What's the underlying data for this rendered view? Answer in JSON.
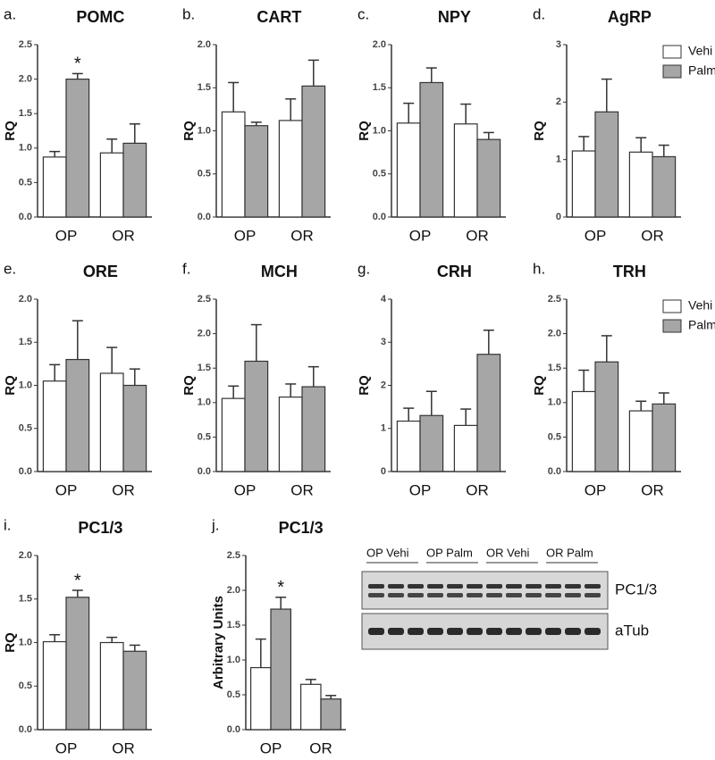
{
  "chart_data": [
    {
      "type": "bar",
      "panel_label": "a.",
      "title": "POMC",
      "ylabel": "RQ",
      "categories": [
        "OP",
        "OR"
      ],
      "series": [
        {
          "name": "Vehi",
          "color": "#ffffff",
          "values": [
            0.87,
            0.93
          ],
          "errors": [
            0.08,
            0.2
          ]
        },
        {
          "name": "Palm",
          "color": "#a6a6a6",
          "values": [
            2.0,
            1.07
          ],
          "errors": [
            0.08,
            0.28
          ]
        }
      ],
      "ylim": [
        0,
        2.5
      ],
      "yticks": [
        {
          "value": 0,
          "label": "0.0"
        },
        0.5,
        {
          "value": 1,
          "label": "1.0"
        },
        1.5,
        {
          "value": 2,
          "label": "2.0"
        },
        2.5
      ],
      "annotation": {
        "text": "*",
        "category": "OP",
        "series": "Palm"
      }
    },
    {
      "type": "bar",
      "panel_label": "b.",
      "title": "CART",
      "ylabel": "RQ",
      "categories": [
        "OP",
        "OR"
      ],
      "series": [
        {
          "name": "Vehi",
          "color": "#ffffff",
          "values": [
            1.22,
            1.12
          ],
          "errors": [
            0.34,
            0.25
          ]
        },
        {
          "name": "Palm",
          "color": "#a6a6a6",
          "values": [
            1.06,
            1.52
          ],
          "errors": [
            0.04,
            0.3
          ]
        }
      ],
      "ylim": [
        0,
        2
      ],
      "yticks": [
        {
          "value": 0,
          "label": "0.0"
        },
        0.5,
        {
          "value": 1,
          "label": "1.0"
        },
        1.5,
        {
          "value": 2,
          "label": "2.0"
        }
      ]
    },
    {
      "type": "bar",
      "panel_label": "c.",
      "title": "NPY",
      "ylabel": "RQ",
      "categories": [
        "OP",
        "OR"
      ],
      "series": [
        {
          "name": "Vehi",
          "color": "#ffffff",
          "values": [
            1.09,
            1.08
          ],
          "errors": [
            0.23,
            0.23
          ]
        },
        {
          "name": "Palm",
          "color": "#a6a6a6",
          "values": [
            1.56,
            0.9
          ],
          "errors": [
            0.17,
            0.08
          ]
        }
      ],
      "ylim": [
        0,
        2
      ],
      "yticks": [
        {
          "value": 0,
          "label": "0.0"
        },
        0.5,
        {
          "value": 1,
          "label": "1.0"
        },
        1.5,
        {
          "value": 2,
          "label": "2.0"
        }
      ]
    },
    {
      "type": "bar",
      "panel_label": "d.",
      "title": "AgRP",
      "ylabel": "RQ",
      "categories": [
        "OP",
        "OR"
      ],
      "legend": true,
      "series": [
        {
          "name": "Vehi",
          "color": "#ffffff",
          "values": [
            1.15,
            1.13
          ],
          "errors": [
            0.25,
            0.25
          ]
        },
        {
          "name": "Palm",
          "color": "#a6a6a6",
          "values": [
            1.83,
            1.05
          ],
          "errors": [
            0.57,
            0.2
          ]
        }
      ],
      "ylim": [
        0,
        3
      ],
      "yticks": [
        0,
        1,
        2,
        3
      ]
    },
    {
      "type": "bar",
      "panel_label": "e.",
      "title": "ORE",
      "ylabel": "RQ",
      "categories": [
        "OP",
        "OR"
      ],
      "series": [
        {
          "name": "Vehi",
          "color": "#ffffff",
          "values": [
            1.05,
            1.14
          ],
          "errors": [
            0.19,
            0.3
          ]
        },
        {
          "name": "Palm",
          "color": "#a6a6a6",
          "values": [
            1.3,
            1.0
          ],
          "errors": [
            0.45,
            0.19
          ]
        }
      ],
      "ylim": [
        0,
        2
      ],
      "yticks": [
        {
          "value": 0,
          "label": "0.0"
        },
        0.5,
        {
          "value": 1,
          "label": "1.0"
        },
        1.5,
        {
          "value": 2,
          "label": "2.0"
        }
      ]
    },
    {
      "type": "bar",
      "panel_label": "f.",
      "title": "MCH",
      "ylabel": "RQ",
      "categories": [
        "OP",
        "OR"
      ],
      "series": [
        {
          "name": "Vehi",
          "color": "#ffffff",
          "values": [
            1.06,
            1.08
          ],
          "errors": [
            0.18,
            0.19
          ]
        },
        {
          "name": "Palm",
          "color": "#a6a6a6",
          "values": [
            1.6,
            1.23
          ],
          "errors": [
            0.53,
            0.29
          ]
        }
      ],
      "ylim": [
        0,
        2.5
      ],
      "yticks": [
        {
          "value": 0,
          "label": "0.0"
        },
        0.5,
        {
          "value": 1,
          "label": "1.0"
        },
        1.5,
        {
          "value": 2,
          "label": "2.0"
        },
        2.5
      ]
    },
    {
      "type": "bar",
      "panel_label": "g.",
      "title": "CRH",
      "ylabel": "RQ",
      "categories": [
        "OP",
        "OR"
      ],
      "series": [
        {
          "name": "Vehi",
          "color": "#ffffff",
          "values": [
            1.17,
            1.07
          ],
          "errors": [
            0.3,
            0.38
          ]
        },
        {
          "name": "Palm",
          "color": "#a6a6a6",
          "values": [
            1.3,
            2.72
          ],
          "errors": [
            0.56,
            0.56
          ]
        }
      ],
      "ylim": [
        0,
        4
      ],
      "yticks": [
        0,
        1,
        2,
        3,
        4
      ]
    },
    {
      "type": "bar",
      "panel_label": "h.",
      "title": "TRH",
      "ylabel": "RQ",
      "categories": [
        "OP",
        "OR"
      ],
      "legend": true,
      "series": [
        {
          "name": "Vehi",
          "color": "#ffffff",
          "values": [
            1.16,
            0.88
          ],
          "errors": [
            0.31,
            0.14
          ]
        },
        {
          "name": "Palm",
          "color": "#a6a6a6",
          "values": [
            1.59,
            0.98
          ],
          "errors": [
            0.38,
            0.16
          ]
        }
      ],
      "ylim": [
        0,
        2.5
      ],
      "yticks": [
        {
          "value": 0,
          "label": "0.0"
        },
        0.5,
        {
          "value": 1,
          "label": "1.0"
        },
        1.5,
        {
          "value": 2,
          "label": "2.0"
        },
        2.5
      ]
    },
    {
      "type": "bar",
      "panel_label": "i.",
      "title": "PC1/3",
      "ylabel": "RQ",
      "categories": [
        "OP",
        "OR"
      ],
      "series": [
        {
          "name": "Vehi",
          "color": "#ffffff",
          "values": [
            1.01,
            1.0
          ],
          "errors": [
            0.08,
            0.06
          ]
        },
        {
          "name": "Palm",
          "color": "#a6a6a6",
          "values": [
            1.52,
            0.9
          ],
          "errors": [
            0.08,
            0.07
          ]
        }
      ],
      "ylim": [
        0,
        2
      ],
      "yticks": [
        {
          "value": 0,
          "label": "0.0"
        },
        0.5,
        {
          "value": 1,
          "label": "1.0"
        },
        1.5,
        {
          "value": 2,
          "label": "2.0"
        }
      ],
      "annotation": {
        "text": "*",
        "category": "OP",
        "series": "Palm"
      }
    },
    {
      "type": "bar",
      "panel_label": "j.",
      "title": "PC1/3",
      "ylabel": "Arbitrary Units",
      "categories": [
        "OP",
        "OR"
      ],
      "series": [
        {
          "name": "Vehi",
          "color": "#ffffff",
          "values": [
            0.89,
            0.65
          ],
          "errors": [
            0.41,
            0.07
          ]
        },
        {
          "name": "Palm",
          "color": "#a6a6a6",
          "values": [
            1.73,
            0.44
          ],
          "errors": [
            0.17,
            0.05
          ]
        }
      ],
      "ylim": [
        0,
        2.5
      ],
      "yticks": [
        {
          "value": 0,
          "label": "0.0"
        },
        0.5,
        {
          "value": 1,
          "label": "1.0"
        },
        1.5,
        {
          "value": 2,
          "label": "2.0"
        },
        2.5
      ],
      "annotation": {
        "text": "*",
        "category": "OP",
        "series": "Palm"
      }
    }
  ],
  "blot": {
    "lanes": [
      "OP Vehi",
      "OP Palm",
      "OR Vehi",
      "OR Palm"
    ],
    "bands": [
      "PC1/3",
      "aTub"
    ]
  }
}
